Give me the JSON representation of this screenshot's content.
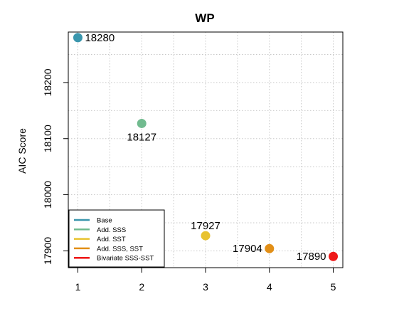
{
  "chart_data": {
    "type": "scatter",
    "title": "WP",
    "xlabel": "",
    "ylabel": "AIC Score",
    "xlim": [
      0.85,
      5.15
    ],
    "ylim": [
      17870,
      18290
    ],
    "x_ticks": [
      1,
      2,
      3,
      4,
      5
    ],
    "y_ticks": [
      17900,
      18000,
      18100,
      18200
    ],
    "grid": true,
    "points": [
      {
        "x": 1,
        "y": 18280,
        "label": "18280",
        "color": "#3a96ad",
        "label_pos": "right"
      },
      {
        "x": 2,
        "y": 18127,
        "label": "18127",
        "color": "#71bb8f",
        "label_pos": "below"
      },
      {
        "x": 3,
        "y": 17927,
        "label": "17927",
        "color": "#e8c22e",
        "label_pos": "above"
      },
      {
        "x": 4,
        "y": 17904,
        "label": "17904",
        "color": "#e28f17",
        "label_pos": "left"
      },
      {
        "x": 5,
        "y": 17890,
        "label": "17890",
        "color": "#ee1717",
        "label_pos": "left"
      }
    ],
    "legend": {
      "position": "bottom-left",
      "entries": [
        {
          "label": "Base",
          "color": "#3a96ad"
        },
        {
          "label": "Add. SSS",
          "color": "#71bb8f"
        },
        {
          "label": "Add. SST",
          "color": "#e8c22e"
        },
        {
          "label": "Add. SSS, SST",
          "color": "#e28f17"
        },
        {
          "label": "Bivariate SSS-SST",
          "color": "#ee1717"
        }
      ]
    }
  }
}
